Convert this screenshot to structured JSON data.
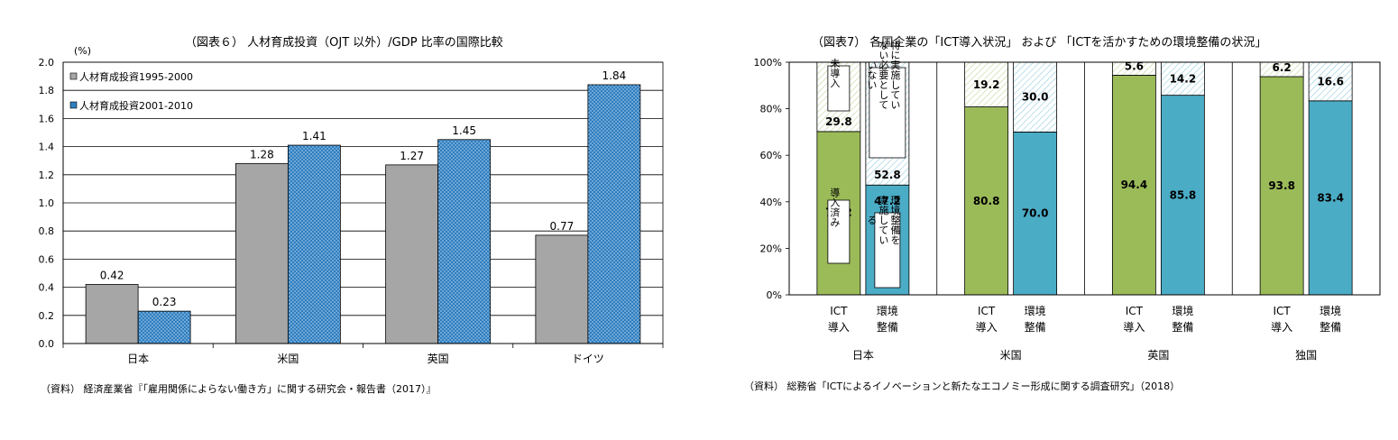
{
  "left_chart": {
    "title": "（図表６） 人材育成投資（OJT 以外）/GDP 比率の国際比較",
    "source": "（資料） 経済産業省『「雇用関係によらない働き方」に関する研究会・報告書（2017）』",
    "colors": {
      "series1": "#a6a6a6",
      "series2": "#2e7ec0"
    }
  },
  "right_chart": {
    "title": "（図表7） 各国企業の「ICT導入状況」 および 「ICTを活かすための環境整備の状況」",
    "source": "（資料） 総務省「ICTによるイノベーションと新たなエコノミー形成に関する調査研究」（2018）",
    "colors": {
      "ict": "#9bbb59",
      "env": "#4bacc6",
      "hatch_ict": "#c3d69b",
      "hatch_env": "#92cddc"
    }
  },
  "chart_data": [
    {
      "type": "bar",
      "unit_label": "(%)",
      "categories": [
        "日本",
        "米国",
        "英国",
        "ドイツ"
      ],
      "series": [
        {
          "name": "人材育成投資1995-2000",
          "values": [
            0.42,
            1.28,
            1.27,
            0.77
          ]
        },
        {
          "name": "人材育成投資2001-2010",
          "values": [
            0.23,
            1.41,
            1.45,
            1.84
          ]
        }
      ],
      "value_labels": [
        [
          "0.42",
          "1.28",
          "1.27",
          "0.77"
        ],
        [
          "0.23",
          "1.41",
          "1.45",
          "1.84"
        ]
      ],
      "ylim": [
        0,
        2.0
      ],
      "yticks": [
        "0.0",
        "0.2",
        "0.4",
        "0.6",
        "0.8",
        "1.0",
        "1.2",
        "1.4",
        "1.6",
        "1.8",
        "2.0"
      ],
      "legend_position": "top-left",
      "grid": true
    },
    {
      "type": "bar",
      "stacked": true,
      "percent": true,
      "categories": [
        "日本",
        "米国",
        "英国",
        "独国"
      ],
      "subcategories": [
        [
          "ICT",
          "導入"
        ],
        [
          "環境",
          "整備"
        ]
      ],
      "yticks": [
        "0%",
        "20%",
        "40%",
        "60%",
        "80%",
        "100%"
      ],
      "ylim": [
        0,
        100
      ],
      "groups": [
        {
          "bars": [
            {
              "bottom": 70.2,
              "top": 29.8,
              "bottom_label": "70.2",
              "top_label": "29.8"
            },
            {
              "bottom": 47.2,
              "top": 52.8,
              "bottom_label": "47.2",
              "top_label": "52.8"
            }
          ]
        },
        {
          "bars": [
            {
              "bottom": 80.8,
              "top": 19.2,
              "bottom_label": "80.8",
              "top_label": "19.2"
            },
            {
              "bottom": 70.0,
              "top": 30.0,
              "bottom_label": "70.0",
              "top_label": "30.0"
            }
          ]
        },
        {
          "bars": [
            {
              "bottom": 94.4,
              "top": 5.6,
              "bottom_label": "94.4",
              "top_label": "5.6"
            },
            {
              "bottom": 85.8,
              "top": 14.2,
              "bottom_label": "85.8",
              "top_label": "14.2"
            }
          ]
        },
        {
          "bars": [
            {
              "bottom": 93.8,
              "top": 6.2,
              "bottom_label": "93.8",
              "top_label": "6.2"
            },
            {
              "bottom": 83.4,
              "top": 16.6,
              "bottom_label": "83.4",
              "top_label": "16.6"
            }
          ]
        }
      ],
      "annotations": {
        "ict_not": "未導入",
        "ict_done": "導入済み",
        "env_not": "特に実施していない必要としていない",
        "env_done": "環境整備を実施している"
      }
    }
  ]
}
